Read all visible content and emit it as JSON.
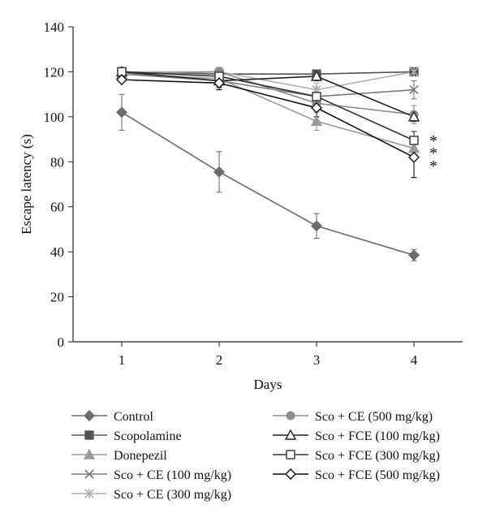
{
  "chart_data": {
    "type": "line",
    "xlabel": "Days",
    "ylabel": "Escape latency (s)",
    "x": [
      1,
      2,
      3,
      4
    ],
    "xlim": [
      0.5,
      4.5
    ],
    "ylim": [
      0,
      140
    ],
    "yticks": [
      0,
      20,
      40,
      60,
      80,
      100,
      120,
      140
    ],
    "grid": false,
    "legend_position": "bottom",
    "significance_marks": [
      "*",
      "*",
      "*"
    ],
    "series": [
      {
        "name": "Control",
        "marker": "diamond-filled",
        "color": "#6b6b6b",
        "values": [
          102,
          75.5,
          51.5,
          38.5
        ],
        "errors": [
          8,
          9,
          5.5,
          2.5
        ]
      },
      {
        "name": "Scopolamine",
        "marker": "square-filled",
        "color": "#555555",
        "values": [
          120,
          119,
          119,
          120
        ],
        "errors": [
          0,
          2,
          1,
          0
        ]
      },
      {
        "name": "Donepezil",
        "marker": "triangle-filled",
        "color": "#9a9a9a",
        "values": [
          119,
          117,
          98,
          86
        ],
        "errors": [
          0,
          3,
          4,
          4
        ]
      },
      {
        "name": "Sco + CE (100 mg/kg)",
        "marker": "x",
        "color": "#7a7a7a",
        "values": [
          119,
          116,
          109,
          112
        ],
        "errors": [
          0,
          3,
          4,
          4
        ]
      },
      {
        "name": "Sco + CE (300 mg/kg)",
        "marker": "asterisk",
        "color": "#b0b0b0",
        "values": [
          120,
          120,
          112,
          120
        ],
        "errors": [
          0,
          2,
          3,
          0
        ]
      },
      {
        "name": "Sco + CE (500 mg/kg)",
        "marker": "circle-filled",
        "color": "#8c8c8c",
        "values": [
          119,
          120,
          106,
          101
        ],
        "errors": [
          0,
          2,
          3,
          4
        ]
      },
      {
        "name": "Sco + FCE (100 mg/kg)",
        "marker": "triangle-open",
        "color": "#222222",
        "values": [
          120,
          116,
          118,
          100
        ],
        "errors": [
          0,
          3,
          2,
          2
        ]
      },
      {
        "name": "Sco + FCE (300 mg/kg)",
        "marker": "square-open",
        "color": "#333333",
        "values": [
          120,
          118,
          109,
          89.5
        ],
        "errors": [
          0,
          3,
          3,
          4
        ]
      },
      {
        "name": "Sco + FCE (500 mg/kg)",
        "marker": "diamond-open",
        "color": "#111111",
        "values": [
          116.5,
          115,
          104,
          82
        ],
        "errors": [
          0,
          3,
          4,
          9
        ]
      }
    ]
  }
}
